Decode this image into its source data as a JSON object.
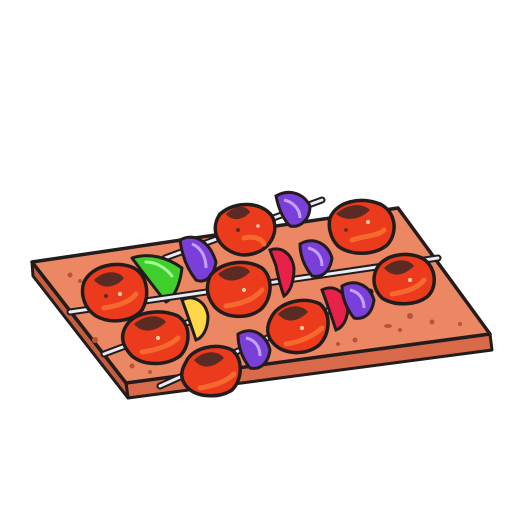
{
  "illustration": {
    "subject": "skewers",
    "skewer_count": 3,
    "icon_names": [
      "cutting-board-icon",
      "skewer-icon",
      "meat-chunk-icon",
      "onion-slice-icon",
      "pepper-slice-icon"
    ],
    "colors": {
      "outline": "#231c1d",
      "board_top": "#ec8763",
      "board_side": "#d96a49",
      "board_speckle": "#b8533a",
      "meat_base": "#ec3a1d",
      "meat_light": "#f6692e",
      "meat_char": "#5a2b22",
      "meat_highlight": "#ffd0a8",
      "skewer": "#e9ecf2",
      "skewer_shade": "#aeb5c4",
      "onion_purple": "#7b3fd9",
      "onion_light": "#c6a0ff",
      "pepper_green": "#3fcf2c",
      "pepper_yellow": "#ffd84a",
      "pepper_red": "#e8214a"
    }
  }
}
